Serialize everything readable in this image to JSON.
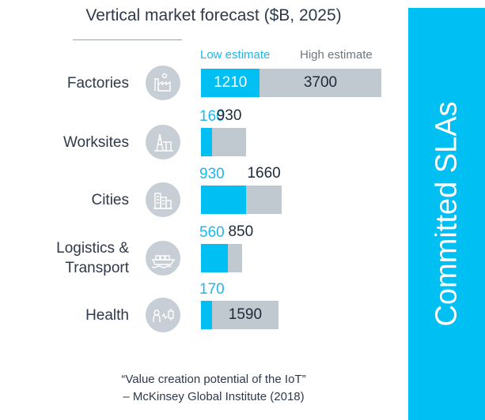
{
  "title": "Vertical market forecast ($B, 2025)",
  "legend": {
    "low": "Low estimate",
    "high": "High estimate"
  },
  "side_panel": {
    "label": "Committed SLAs",
    "color": "#00bff3"
  },
  "quote": {
    "line1": "“Value creation potential of the IoT”",
    "line2": "– McKinsey Global Institute (2018)"
  },
  "colors": {
    "low": "#00bff3",
    "high": "#c0c8d0"
  },
  "rows": [
    {
      "label_lines": [
        "Factories"
      ],
      "icon": "factory-icon"
    },
    {
      "label_lines": [
        "Worksites"
      ],
      "icon": "oil-rig-icon"
    },
    {
      "label_lines": [
        "Cities"
      ],
      "icon": "city-buildings-icon"
    },
    {
      "label_lines": [
        "Logistics &",
        "Transport"
      ],
      "icon": "cargo-ship-icon"
    },
    {
      "label_lines": [
        "Health"
      ],
      "icon": "health-devices-icon"
    }
  ],
  "chart_data": {
    "type": "bar",
    "orientation": "horizontal",
    "title": "Vertical market forecast ($B, 2025)",
    "categories": [
      "Factories",
      "Worksites",
      "Cities",
      "Logistics & Transport",
      "Health"
    ],
    "series": [
      {
        "name": "Low estimate",
        "values": [
          1210,
          160,
          930,
          560,
          170
        ]
      },
      {
        "name": "High estimate",
        "values": [
          3700,
          930,
          1660,
          850,
          1590
        ]
      }
    ],
    "legend": "top"
  }
}
